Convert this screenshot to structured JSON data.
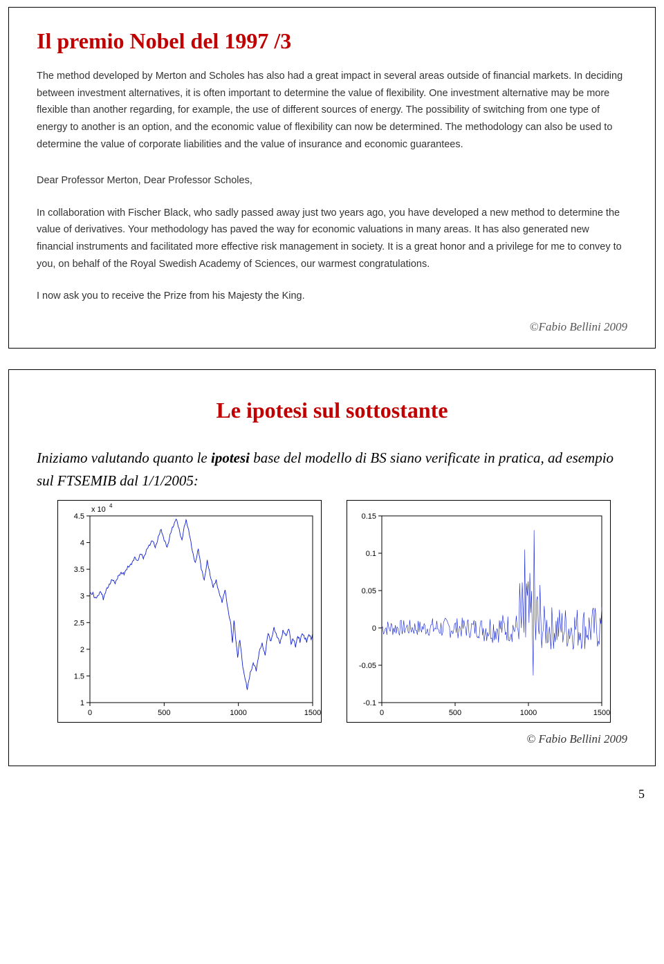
{
  "page_number": "5",
  "slide1": {
    "title": "Il premio Nobel del 1997 /3",
    "para1": "The method developed by Merton and Scholes has also had a great impact in several areas outside of financial markets. In deciding between investment alternatives, it is often important to determine the value of flexibility. One investment alternative may be more flexible than another regarding, for example, the use of different sources of energy. The possibility of switching from one type of energy to another is an option, and the economic value of flexibility can now be determined. The methodology can also be used to determine the value of corporate liabilities and the value of insurance and economic guarantees.",
    "para2": "Dear Professor Merton, Dear Professor Scholes,",
    "para3": "In collaboration with Fischer Black, who sadly passed away just two years ago, you have developed a new method to determine the value of derivatives. Your methodology has paved the way for economic valuations in many areas. It has also generated new financial instruments and facilitated more effective risk management in society. It is a great honor and a privilege for me to convey to you, on behalf of the Royal Swedish Academy of Sciences, our warmest congratulations.",
    "para4": "I now ask you to receive the Prize from his Majesty the King.",
    "footer_a": "Fabio Bellini",
    "footer_b": "©Fabio Bellini 2009"
  },
  "slide2": {
    "title": "Le ipotesi sul sottostante",
    "intro_a": "Iniziamo valutando quanto le ",
    "intro_b": "ipotesi",
    "intro_c": " base del modello di BS siano verificate in pratica, ad esempio sul FTSEMIB dal 1/1/2005:",
    "footer": "© Fabio Bellini 2009",
    "chart_left": {
      "type": "line",
      "exponent_label": "x 10",
      "exponent_sup": "4",
      "xlim": [
        0,
        1500
      ],
      "ylim": [
        1,
        4.5
      ],
      "xticks": [
        0,
        500,
        1000,
        1500
      ],
      "yticks": [
        1,
        1.5,
        2,
        2.5,
        3,
        3.5,
        4,
        4.5
      ],
      "line_color": "#1020d0",
      "background": "#ffffff",
      "border": "#000000",
      "font_size": 11,
      "line_width": 0.9,
      "data": [
        [
          0,
          3.05
        ],
        [
          20,
          3.05
        ],
        [
          35,
          2.95
        ],
        [
          55,
          3.02
        ],
        [
          75,
          3.07
        ],
        [
          90,
          2.95
        ],
        [
          110,
          3.1
        ],
        [
          130,
          3.22
        ],
        [
          150,
          3.3
        ],
        [
          170,
          3.25
        ],
        [
          190,
          3.35
        ],
        [
          210,
          3.45
        ],
        [
          230,
          3.4
        ],
        [
          255,
          3.55
        ],
        [
          280,
          3.6
        ],
        [
          300,
          3.72
        ],
        [
          320,
          3.65
        ],
        [
          340,
          3.8
        ],
        [
          360,
          3.7
        ],
        [
          380,
          3.85
        ],
        [
          400,
          3.95
        ],
        [
          420,
          4.05
        ],
        [
          440,
          3.9
        ],
        [
          460,
          4.1
        ],
        [
          480,
          4.25
        ],
        [
          500,
          4.05
        ],
        [
          520,
          3.9
        ],
        [
          540,
          4.15
        ],
        [
          560,
          4.3
        ],
        [
          580,
          4.45
        ],
        [
          600,
          4.25
        ],
        [
          620,
          4.05
        ],
        [
          640,
          4.35
        ],
        [
          650,
          4.42
        ],
        [
          670,
          4.15
        ],
        [
          690,
          3.85
        ],
        [
          710,
          3.6
        ],
        [
          730,
          3.9
        ],
        [
          750,
          3.5
        ],
        [
          770,
          3.3
        ],
        [
          790,
          3.65
        ],
        [
          810,
          3.4
        ],
        [
          830,
          3.15
        ],
        [
          850,
          3.3
        ],
        [
          870,
          3.05
        ],
        [
          890,
          2.9
        ],
        [
          910,
          3.1
        ],
        [
          930,
          2.75
        ],
        [
          950,
          2.45
        ],
        [
          960,
          2.1
        ],
        [
          970,
          2.55
        ],
        [
          980,
          2.25
        ],
        [
          995,
          1.85
        ],
        [
          1010,
          2.2
        ],
        [
          1030,
          1.65
        ],
        [
          1045,
          1.45
        ],
        [
          1060,
          1.25
        ],
        [
          1080,
          1.55
        ],
        [
          1100,
          1.75
        ],
        [
          1120,
          1.6
        ],
        [
          1140,
          1.95
        ],
        [
          1160,
          2.1
        ],
        [
          1180,
          1.9
        ],
        [
          1200,
          2.3
        ],
        [
          1220,
          2.15
        ],
        [
          1240,
          2.4
        ],
        [
          1260,
          2.25
        ],
        [
          1280,
          2.1
        ],
        [
          1300,
          2.35
        ],
        [
          1320,
          2.25
        ],
        [
          1340,
          2.4
        ],
        [
          1355,
          2.1
        ],
        [
          1370,
          2.2
        ],
        [
          1385,
          2.05
        ],
        [
          1400,
          2.25
        ],
        [
          1415,
          2.15
        ],
        [
          1430,
          2.3
        ],
        [
          1445,
          2.22
        ],
        [
          1460,
          2.15
        ],
        [
          1475,
          2.28
        ],
        [
          1490,
          2.2
        ],
        [
          1500,
          2.25
        ]
      ]
    },
    "chart_right": {
      "type": "line",
      "xlim": [
        0,
        1500
      ],
      "ylim": [
        -0.1,
        0.15
      ],
      "xticks": [
        0,
        500,
        1000,
        1500
      ],
      "yticks": [
        -0.1,
        -0.05,
        0,
        0.05,
        0.1,
        0.15
      ],
      "line_color": "#1020d0",
      "background": "#ffffff",
      "border": "#000000",
      "font_size": 11,
      "line_width": 0.6,
      "noise_seed": 7,
      "noise_points": 260
    }
  }
}
